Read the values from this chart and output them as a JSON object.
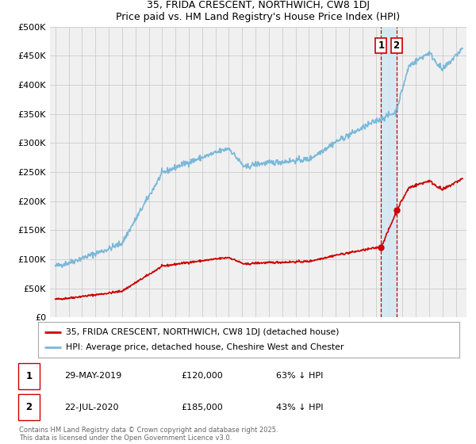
{
  "title1": "35, FRIDA CRESCENT, NORTHWICH, CW8 1DJ",
  "title2": "Price paid vs. HM Land Registry's House Price Index (HPI)",
  "hpi_color": "#7ab8d9",
  "sale_color": "#cc0000",
  "vline_color": "#cc0000",
  "shade_color": "#d0e8f5",
  "bg_color": "#f0f0f0",
  "grid_color": "#cccccc",
  "ylim": [
    0,
    500000
  ],
  "yticks": [
    0,
    50000,
    100000,
    150000,
    200000,
    250000,
    300000,
    350000,
    400000,
    450000,
    500000
  ],
  "ytick_labels": [
    "£0",
    "£50K",
    "£100K",
    "£150K",
    "£200K",
    "£250K",
    "£300K",
    "£350K",
    "£400K",
    "£450K",
    "£500K"
  ],
  "sale1_price": 120000,
  "sale1_x": 2019.41,
  "sale2_price": 185000,
  "sale2_x": 2020.55,
  "legend1": "35, FRIDA CRESCENT, NORTHWICH, CW8 1DJ (detached house)",
  "legend2": "HPI: Average price, detached house, Cheshire West and Chester",
  "footnote": "Contains HM Land Registry data © Crown copyright and database right 2025.\nThis data is licensed under the Open Government Licence v3.0."
}
